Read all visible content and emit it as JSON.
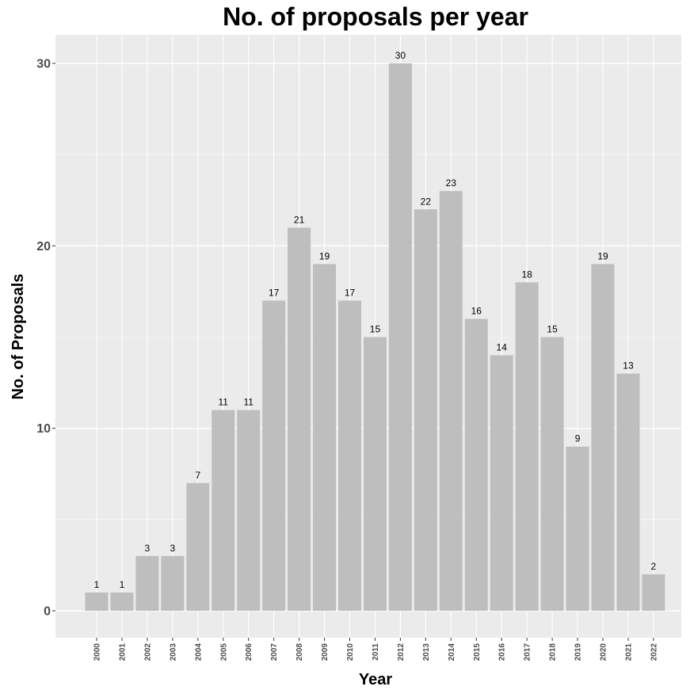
{
  "chart_data": {
    "type": "bar",
    "title": "No. of proposals per year",
    "xlabel": "Year",
    "ylabel": "No. of Proposals",
    "categories": [
      "2000",
      "2001",
      "2002",
      "2003",
      "2004",
      "2005",
      "2006",
      "2007",
      "2008",
      "2009",
      "2010",
      "2011",
      "2012",
      "2013",
      "2014",
      "2015",
      "2016",
      "2017",
      "2018",
      "2019",
      "2020",
      "2021",
      "2022"
    ],
    "values": [
      1,
      1,
      3,
      3,
      7,
      11,
      11,
      17,
      21,
      19,
      17,
      15,
      30,
      22,
      23,
      16,
      14,
      18,
      15,
      9,
      19,
      13,
      2
    ],
    "ylim": [
      0,
      30
    ],
    "yticks": [
      "0",
      "10",
      "20",
      "30"
    ],
    "grid": true,
    "legend": "none",
    "colors": {
      "bar": "#bebebe",
      "panel": "#ebebeb",
      "grid": "#ffffff"
    }
  }
}
